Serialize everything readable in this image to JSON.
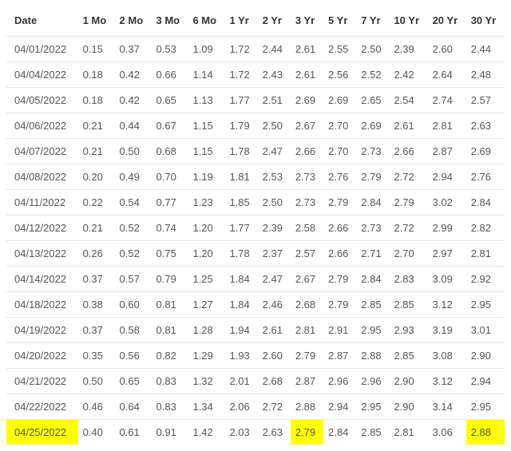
{
  "table": {
    "columns": [
      "Date",
      "1 Mo",
      "2 Mo",
      "3 Mo",
      "6 Mo",
      "1 Yr",
      "2 Yr",
      "3 Yr",
      "5 Yr",
      "7 Yr",
      "10 Yr",
      "20 Yr",
      "30 Yr"
    ],
    "rows": [
      {
        "cells": [
          "04/01/2022",
          "0.15",
          "0.37",
          "0.53",
          "1.09",
          "1.72",
          "2.44",
          "2.61",
          "2.55",
          "2.50",
          "2.39",
          "2.60",
          "2.44"
        ],
        "highlight": []
      },
      {
        "cells": [
          "04/04/2022",
          "0.18",
          "0.42",
          "0.66",
          "1.14",
          "1.72",
          "2.43",
          "2.61",
          "2.56",
          "2.52",
          "2.42",
          "2.64",
          "2.48"
        ],
        "highlight": []
      },
      {
        "cells": [
          "04/05/2022",
          "0.18",
          "0.42",
          "0.65",
          "1.13",
          "1.77",
          "2.51",
          "2.69",
          "2.69",
          "2.65",
          "2.54",
          "2.74",
          "2.57"
        ],
        "highlight": []
      },
      {
        "cells": [
          "04/06/2022",
          "0.21",
          "0.44",
          "0.67",
          "1.15",
          "1.79",
          "2.50",
          "2.67",
          "2.70",
          "2.69",
          "2.61",
          "2.81",
          "2.63"
        ],
        "highlight": []
      },
      {
        "cells": [
          "04/07/2022",
          "0.21",
          "0.50",
          "0.68",
          "1.15",
          "1.78",
          "2.47",
          "2.66",
          "2.70",
          "2.73",
          "2.66",
          "2.87",
          "2.69"
        ],
        "highlight": []
      },
      {
        "cells": [
          "04/08/2022",
          "0.20",
          "0.49",
          "0.70",
          "1.19",
          "1.81",
          "2.53",
          "2.73",
          "2.76",
          "2.79",
          "2.72",
          "2.94",
          "2.76"
        ],
        "highlight": []
      },
      {
        "cells": [
          "04/11/2022",
          "0.22",
          "0.54",
          "0.77",
          "1.23",
          "1.85",
          "2.50",
          "2.73",
          "2.79",
          "2.84",
          "2.79",
          "3.02",
          "2.84"
        ],
        "highlight": []
      },
      {
        "cells": [
          "04/12/2022",
          "0.21",
          "0.52",
          "0.74",
          "1.20",
          "1.77",
          "2.39",
          "2.58",
          "2.66",
          "2.73",
          "2.72",
          "2.99",
          "2.82"
        ],
        "highlight": []
      },
      {
        "cells": [
          "04/13/2022",
          "0.26",
          "0.52",
          "0.75",
          "1.20",
          "1.78",
          "2.37",
          "2.57",
          "2.66",
          "2.71",
          "2.70",
          "2.97",
          "2.81"
        ],
        "highlight": []
      },
      {
        "cells": [
          "04/14/2022",
          "0.37",
          "0.57",
          "0.79",
          "1.25",
          "1.84",
          "2.47",
          "2.67",
          "2.79",
          "2.84",
          "2.83",
          "3.09",
          "2.92"
        ],
        "highlight": []
      },
      {
        "cells": [
          "04/18/2022",
          "0.38",
          "0.60",
          "0.81",
          "1.27",
          "1.84",
          "2.46",
          "2.68",
          "2.79",
          "2.85",
          "2.85",
          "3.12",
          "2.95"
        ],
        "highlight": []
      },
      {
        "cells": [
          "04/19/2022",
          "0.37",
          "0.58",
          "0.81",
          "1.28",
          "1.94",
          "2.61",
          "2.81",
          "2.91",
          "2.95",
          "2.93",
          "3.19",
          "3.01"
        ],
        "highlight": []
      },
      {
        "cells": [
          "04/20/2022",
          "0.35",
          "0.56",
          "0.82",
          "1.29",
          "1.93",
          "2.60",
          "2.79",
          "2.87",
          "2.88",
          "2.85",
          "3.08",
          "2.90"
        ],
        "highlight": []
      },
      {
        "cells": [
          "04/21/2022",
          "0.50",
          "0.65",
          "0.83",
          "1.32",
          "2.01",
          "2.68",
          "2.87",
          "2.96",
          "2.96",
          "2.90",
          "3.12",
          "2.94"
        ],
        "highlight": []
      },
      {
        "cells": [
          "04/22/2022",
          "0.46",
          "0.64",
          "0.83",
          "1.34",
          "2.06",
          "2.72",
          "2.88",
          "2.94",
          "2.95",
          "2.90",
          "3.14",
          "2.95"
        ],
        "highlight": []
      },
      {
        "cells": [
          "04/25/2022",
          "0.40",
          "0.61",
          "0.91",
          "1.42",
          "2.03",
          "2.63",
          "2.79",
          "2.84",
          "2.85",
          "2.81",
          "3.06",
          "2.88"
        ],
        "highlight": [
          0,
          7,
          12
        ]
      }
    ],
    "highlight_color": "#ffff00",
    "border_color": "#e6e6e6",
    "background_color": "#ffffff",
    "header_text_color": "#333333",
    "cell_text_color": "#555555",
    "font_size": 13
  }
}
